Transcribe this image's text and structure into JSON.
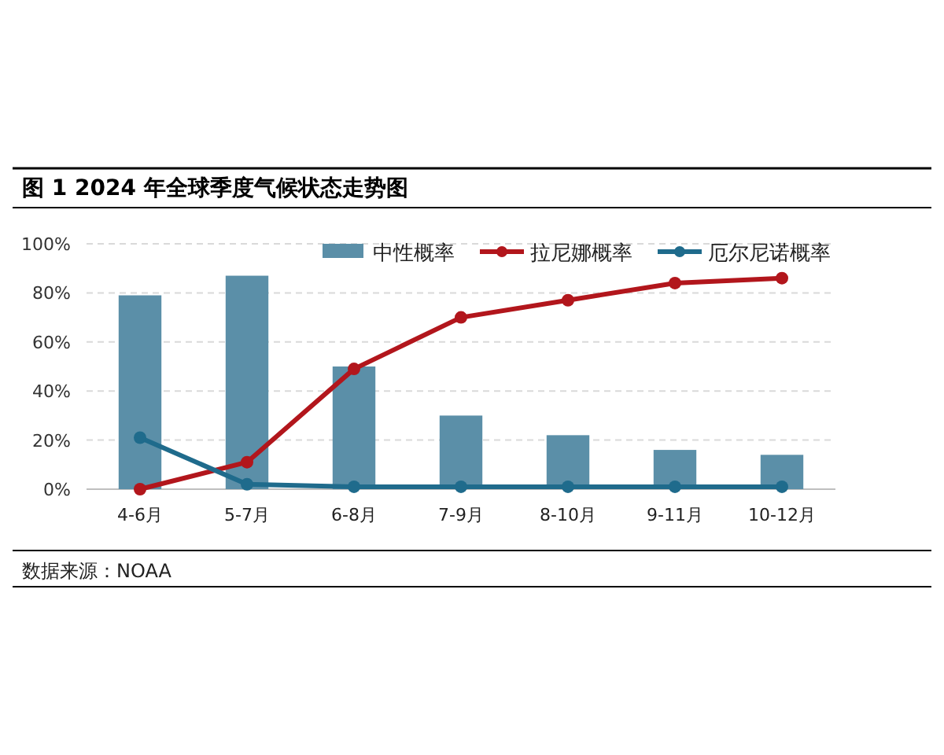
{
  "chart_data": {
    "type": "bar",
    "title": "图 1  2024 年全球季度气候状态走势图",
    "categories": [
      "4-6月",
      "5-7月",
      "6-8月",
      "7-9月",
      "8-10月",
      "9-11月",
      "10-12月"
    ],
    "series": [
      {
        "name": "中性概率",
        "color": "#5b8fa8",
        "values": [
          79,
          87,
          50,
          30,
          22,
          16,
          14
        ]
      },
      {
        "name": "拉尼娜概率",
        "type": "line",
        "color": "#b2161c",
        "marker": "circle",
        "values": [
          0,
          11,
          49,
          70,
          77,
          84,
          86
        ]
      },
      {
        "name": "厄尔尼诺概率",
        "type": "line",
        "color": "#1f6b8c",
        "marker": "circle",
        "values": [
          21,
          2,
          1,
          1,
          1,
          1,
          1
        ]
      }
    ],
    "ylim": [
      0,
      100
    ],
    "yticks": [
      {
        "value": 0,
        "label": "0%"
      },
      {
        "value": 20,
        "label": "20%"
      },
      {
        "value": 40,
        "label": "40%"
      },
      {
        "value": 60,
        "label": "60%"
      },
      {
        "value": 80,
        "label": "80%"
      },
      {
        "value": 100,
        "label": "100%"
      }
    ],
    "grid": "y",
    "legend": "top right",
    "annotations": [
      "数据来源：NOAA"
    ]
  }
}
